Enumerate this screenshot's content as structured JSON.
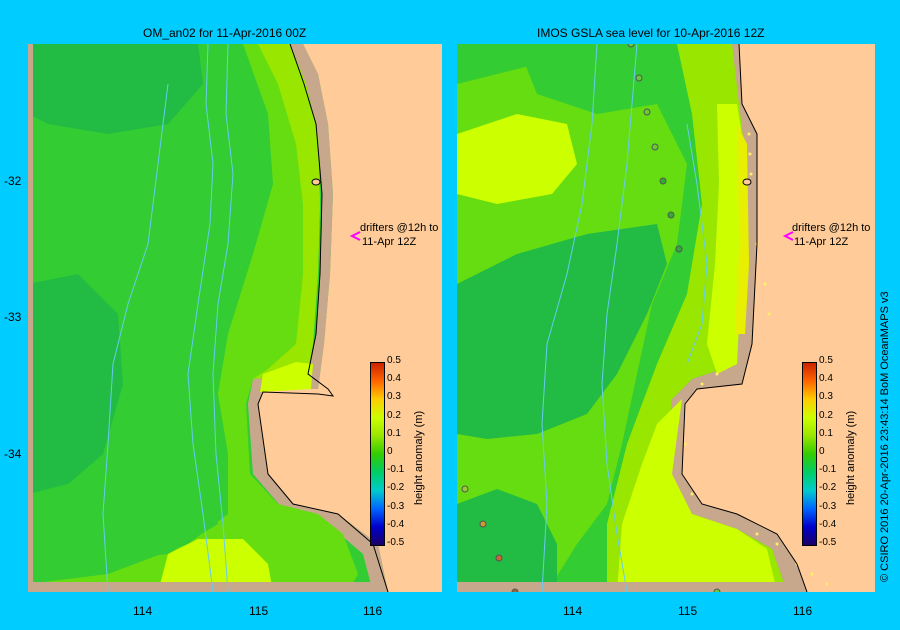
{
  "panels": [
    {
      "title": "OM_an02 for 11-Apr-2016 00Z",
      "annotation_line1": "drifters @12h to",
      "annotation_line2": "11-Apr 12Z"
    },
    {
      "title": "IMOS GSLA sea level  for 10-Apr-2016 12Z",
      "annotation_line1": "drifters @12h to",
      "annotation_line2": "11-Apr 12Z"
    }
  ],
  "axes": {
    "lat_ticks": [
      "-32",
      "-33",
      "-34"
    ],
    "lon_ticks": [
      "114",
      "115",
      "116"
    ]
  },
  "colorbar": {
    "label": "height anomaly (m)",
    "ticks": [
      "0.5",
      "0.4",
      "0.3",
      "0.2",
      "0.1",
      "0",
      "-0.1",
      "-0.2",
      "-0.3",
      "-0.4",
      "-0.5"
    ],
    "range": [
      -0.5,
      0.5
    ],
    "colors": [
      "#1a0066",
      "#0000cc",
      "#0066ff",
      "#00cccc",
      "#00cc66",
      "#33cc00",
      "#99e600",
      "#ccff00",
      "#ffcc00",
      "#ff6600",
      "#cc2200"
    ]
  },
  "credit": "© CSIRO 2016   20-Apr-2016 23:43:14 BoM OceanMAPS v3",
  "colors": {
    "background": "#00ccff",
    "land": "#ffcc99",
    "coast_shelf": "#c8a88c",
    "drifter_marker": "#ff00ff"
  }
}
